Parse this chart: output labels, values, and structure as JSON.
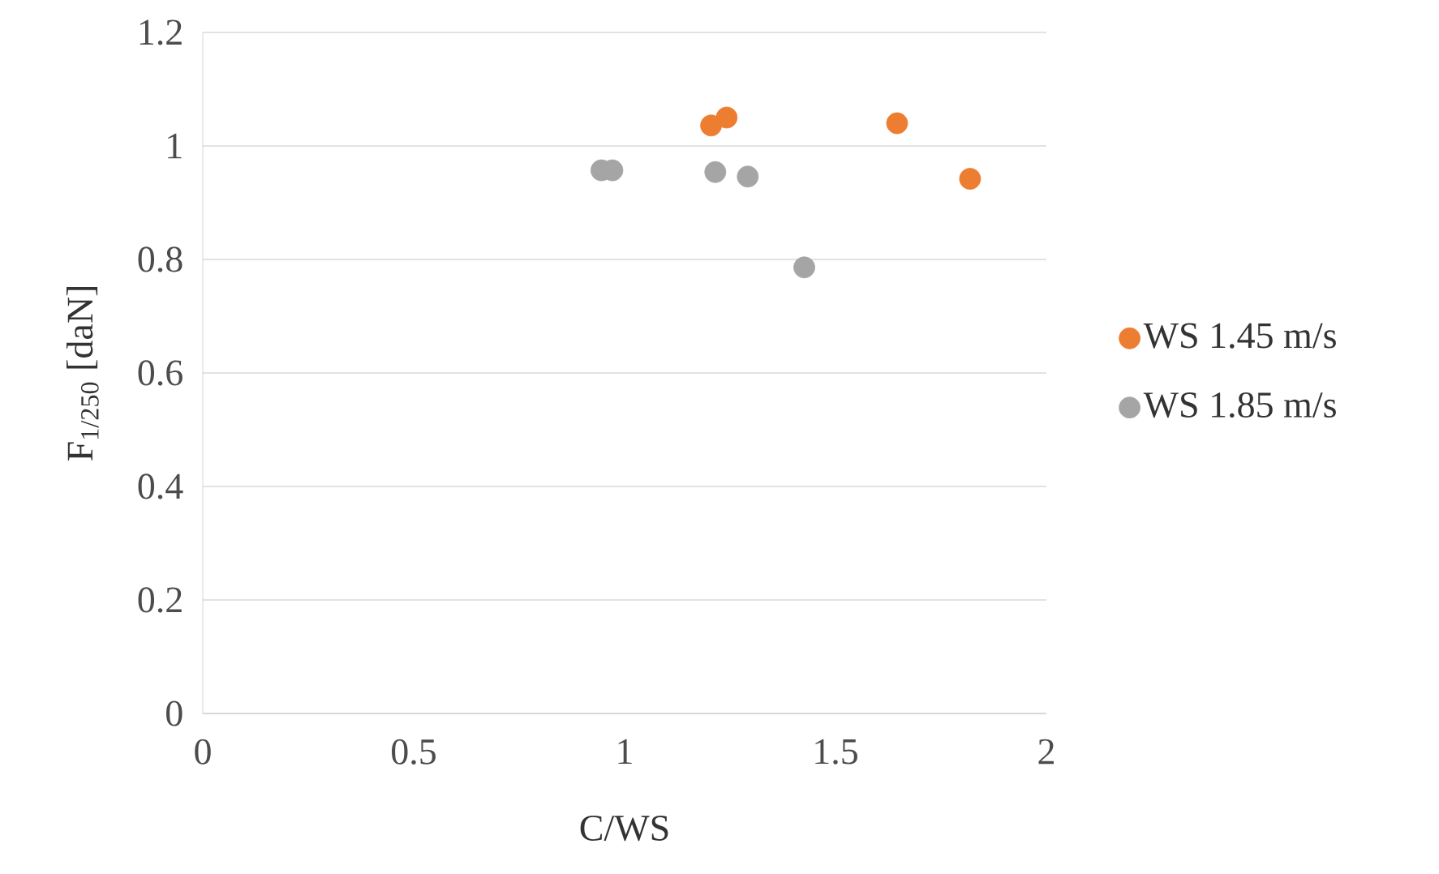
{
  "chart_data": {
    "type": "scatter",
    "xlabel": "C/WS",
    "ylabel": "F$_{1/250}$ [daN]",
    "xlim": [
      0,
      2
    ],
    "ylim": [
      0,
      1.2
    ],
    "xticks": [
      0,
      0.5,
      1,
      1.5,
      2
    ],
    "yticks": [
      0,
      0.2,
      0.4,
      0.6,
      0.8,
      1,
      1.2
    ],
    "grid": "y",
    "legend": "right",
    "marker": "circle",
    "series": [
      {
        "name": "WS 1.45 m/s",
        "color": "#ed7d31",
        "x": [
          1.205,
          1.242,
          1.646,
          1.819
        ],
        "values": [
          1.036,
          1.05,
          1.04,
          0.942
        ]
      },
      {
        "name": "WS 1.85 m/s",
        "color": "#a5a5a5",
        "x": [
          0.945,
          0.971,
          1.215,
          1.292,
          1.426
        ],
        "values": [
          0.957,
          0.957,
          0.954,
          0.946,
          0.786
        ]
      }
    ]
  }
}
